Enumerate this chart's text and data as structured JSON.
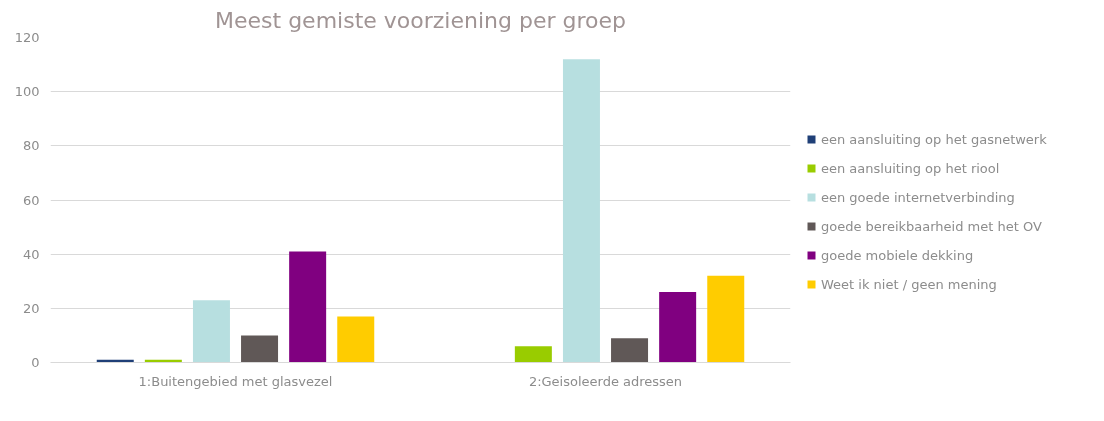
{
  "chart_data": {
    "type": "bar",
    "title": "Meest gemiste voorziening per groep",
    "categories": [
      "1:Buitengebied met glasvezel",
      "2:Geisoleerde adressen"
    ],
    "series": [
      {
        "name": "een aansluiting op het gasnetwerk",
        "color": "#1f3f77",
        "values": [
          1,
          null
        ]
      },
      {
        "name": "een aansluiting op het riool",
        "color": "#99cc00",
        "values": [
          1,
          6
        ]
      },
      {
        "name": "een goede internetverbinding",
        "color": "#b7dfe0",
        "values": [
          23,
          112
        ]
      },
      {
        "name": "goede bereikbaarheid met het OV",
        "color": "#605857",
        "values": [
          10,
          9
        ]
      },
      {
        "name": "goede mobiele dekking",
        "color": "#800080",
        "values": [
          41,
          26
        ]
      },
      {
        "name": "Weet ik niet / geen mening",
        "color": "#ffcc00",
        "values": [
          17,
          32
        ]
      }
    ],
    "ylim": [
      0,
      120
    ],
    "yticks": [
      0,
      20,
      40,
      60,
      80,
      100,
      120
    ],
    "grid": "y",
    "legend": "right"
  }
}
